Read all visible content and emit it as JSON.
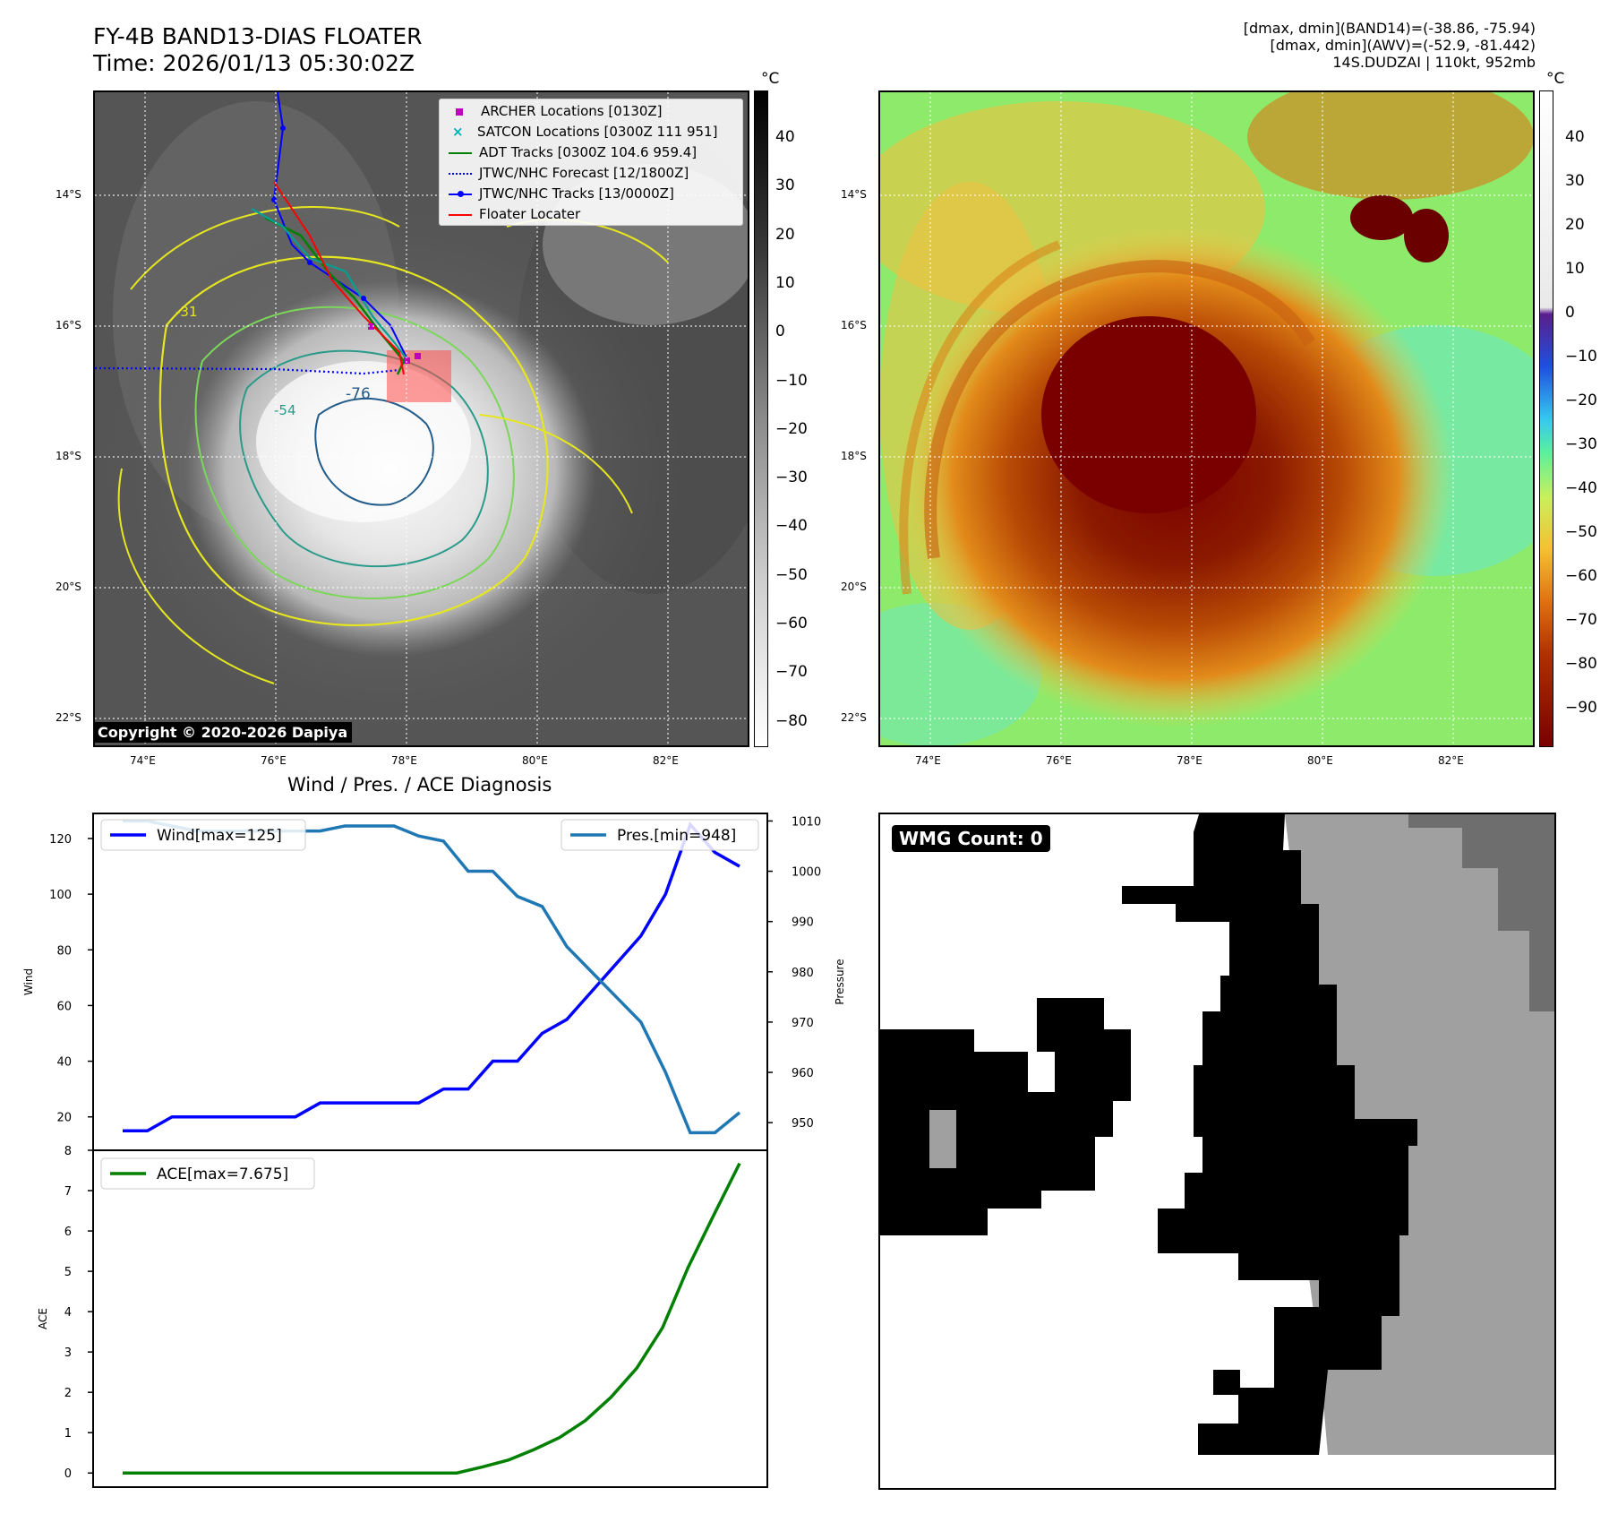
{
  "header": {
    "title_line1": "FY-4B BAND13-DIAS FLOATER",
    "title_line2": "Time: 2026/01/13 05:30:02Z",
    "info_line1": "[dmax, dmin](BAND14)=(-38.86, -75.94)",
    "info_line2": "[dmax, dmin](AWV)=(-52.9, -81.442)",
    "info_line3": "14S.DUDZAI | 110kt, 952mb"
  },
  "ir_panel": {
    "lat_labels": [
      "14°S",
      "16°S",
      "18°S",
      "20°S",
      "22°S"
    ],
    "lon_labels": [
      "74°E",
      "76°E",
      "78°E",
      "80°E",
      "82°E"
    ],
    "contour_labels": [
      "-31",
      "-54",
      "-76"
    ],
    "copyright": "Copyright © 2020-2026 Dapiya",
    "legend": [
      {
        "label": "ARCHER Locations [0130Z]",
        "color": "#c000c0",
        "marker": "square"
      },
      {
        "label": "SATCON Locations [0300Z 111 951]",
        "color": "#00b0b0",
        "marker": "x"
      },
      {
        "label": "ADT Tracks [0300Z 104.6 959.4]",
        "color": "#008000",
        "marker": "line"
      },
      {
        "label": "JTWC/NHC Forecast [12/1800Z]",
        "color": "#0000ff",
        "marker": "dotted"
      },
      {
        "label": "JTWC/NHC Tracks [13/0000Z]",
        "color": "#0000ff",
        "marker": "line-dot"
      },
      {
        "label": "Floater Locater",
        "color": "#ff0000",
        "marker": "line"
      }
    ],
    "colorbar": {
      "unit": "°C",
      "ticks": [
        "40",
        "30",
        "20",
        "10",
        "0",
        "−10",
        "−20",
        "−30",
        "−40",
        "−50",
        "−60",
        "−70",
        "−80"
      ]
    }
  },
  "wv_panel": {
    "lat_labels": [
      "14°S",
      "16°S",
      "18°S",
      "20°S",
      "22°S"
    ],
    "lon_labels": [
      "74°E",
      "76°E",
      "78°E",
      "80°E",
      "82°E"
    ],
    "colorbar": {
      "unit": "°C",
      "ticks": [
        "40",
        "30",
        "20",
        "10",
        "0",
        "−10",
        "−20",
        "−30",
        "−40",
        "−50",
        "−60",
        "−70",
        "−80",
        "−90"
      ]
    }
  },
  "diagnosis_title": "Wind / Pres. / ACE Diagnosis",
  "wmg_panel": {
    "badge": "WMG Count: 0"
  },
  "chart_data": [
    {
      "type": "line",
      "title": "Wind / Pres. / ACE Diagnosis",
      "ylabel": "Wind",
      "y2label": "Pressure",
      "ylim": [
        8,
        129
      ],
      "y2lim": [
        944.5,
        1011.5
      ],
      "yticks": [
        "20",
        "40",
        "60",
        "80",
        "100",
        "120"
      ],
      "y2ticks": [
        "950",
        "960",
        "970",
        "980",
        "990",
        "1000",
        "1010"
      ],
      "series": [
        {
          "name": "Wind[max=125]",
          "color": "#0000ff",
          "values": [
            15,
            15,
            20,
            20,
            20,
            20,
            20,
            20,
            25,
            25,
            25,
            25,
            25,
            30,
            30,
            40,
            40,
            50,
            55,
            65,
            75,
            85,
            100,
            125,
            115,
            110
          ]
        },
        {
          "name": "Pres.[min=948]",
          "color": "#1f77b4",
          "values": [
            1010,
            1010,
            1009,
            1008,
            1008,
            1008,
            1008,
            1008,
            1008,
            1009,
            1009,
            1009,
            1007,
            1006,
            1000,
            1000,
            995,
            993,
            985,
            980,
            975,
            970,
            960,
            948,
            948,
            952
          ]
        }
      ]
    },
    {
      "type": "line",
      "ylabel": "ACE",
      "ylim": [
        -0.35,
        8
      ],
      "yticks": [
        "0",
        "1",
        "2",
        "3",
        "4",
        "5",
        "6",
        "7",
        "8"
      ],
      "series": [
        {
          "name": "ACE[max=7.675]",
          "color": "#008000",
          "values": [
            0,
            0,
            0,
            0,
            0,
            0,
            0,
            0,
            0,
            0,
            0,
            0,
            0,
            0,
            0.15,
            0.32,
            0.58,
            0.88,
            1.3,
            1.88,
            2.6,
            3.6,
            5.1,
            6.4,
            7.675
          ]
        }
      ]
    }
  ]
}
